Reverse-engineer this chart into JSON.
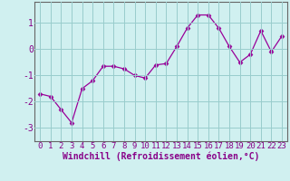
{
  "x": [
    0,
    1,
    2,
    3,
    4,
    5,
    6,
    7,
    8,
    9,
    10,
    11,
    12,
    13,
    14,
    15,
    16,
    17,
    18,
    19,
    20,
    21,
    22,
    23
  ],
  "y": [
    -1.7,
    -1.8,
    -2.3,
    -2.8,
    -1.5,
    -1.2,
    -0.65,
    -0.65,
    -0.75,
    -1.0,
    -1.1,
    -0.6,
    -0.55,
    0.1,
    0.8,
    1.3,
    1.3,
    0.8,
    0.1,
    -0.5,
    -0.2,
    0.7,
    -0.1,
    0.5
  ],
  "line_color": "#990099",
  "marker": "D",
  "marker_size": 2.5,
  "xlim": [
    -0.5,
    23.5
  ],
  "ylim": [
    -3.5,
    1.8
  ],
  "yticks": [
    -3,
    -2,
    -1,
    0,
    1
  ],
  "xticks": [
    0,
    1,
    2,
    3,
    4,
    5,
    6,
    7,
    8,
    9,
    10,
    11,
    12,
    13,
    14,
    15,
    16,
    17,
    18,
    19,
    20,
    21,
    22,
    23
  ],
  "xlabel": "Windchill (Refroidissement éolien,°C)",
  "background_color": "#d0f0f0",
  "grid_color": "#99cccc",
  "spine_color": "#666666",
  "tick_color": "#880088",
  "label_color": "#880088",
  "font_size": 6.5,
  "xlabel_fontsize": 7
}
